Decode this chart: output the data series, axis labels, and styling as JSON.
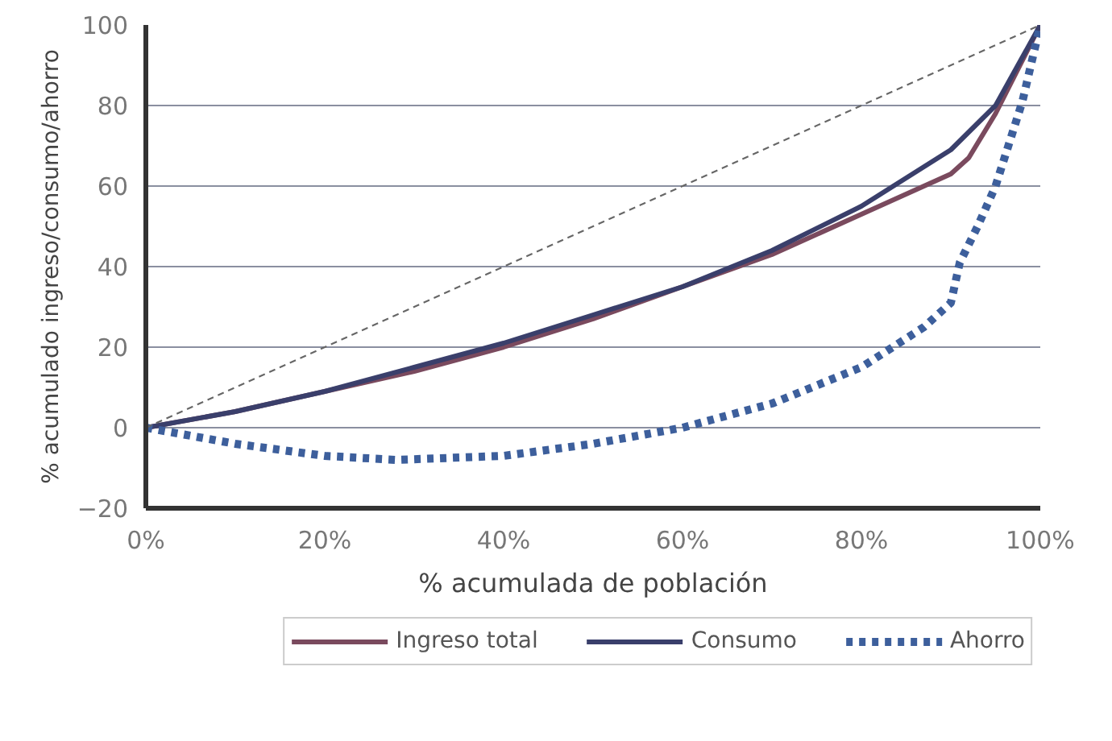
{
  "chart_data": {
    "type": "line",
    "xlabel": "% acumulada de población",
    "ylabel": "% acumulado ingreso/consumo/ahorro",
    "xlim": [
      0,
      100
    ],
    "ylim": [
      -20,
      100
    ],
    "xticks": [
      {
        "value": 0,
        "label": "0%"
      },
      {
        "value": 20,
        "label": "20%"
      },
      {
        "value": 40,
        "label": "40%"
      },
      {
        "value": 60,
        "label": "60%"
      },
      {
        "value": 80,
        "label": "80%"
      },
      {
        "value": 100,
        "label": "100%"
      }
    ],
    "yticks": [
      -20,
      0,
      20,
      40,
      60,
      80,
      100
    ],
    "grid": "y",
    "legend": "bottom",
    "series": [
      {
        "name": "Ingreso total",
        "color": "#7a4a5e",
        "line_style": "solid",
        "x": [
          0,
          10,
          20,
          30,
          40,
          50,
          60,
          70,
          80,
          90,
          92,
          95,
          100
        ],
        "values": [
          0,
          4,
          9,
          14,
          20,
          27,
          35,
          43,
          53,
          63,
          67,
          78,
          100
        ]
      },
      {
        "name": "Consumo",
        "color": "#3a3f6b",
        "line_style": "solid",
        "x": [
          0,
          10,
          20,
          30,
          40,
          50,
          60,
          70,
          80,
          90,
          95,
          100
        ],
        "values": [
          0,
          4,
          9,
          15,
          21,
          28,
          35,
          44,
          55,
          69,
          80,
          100
        ]
      },
      {
        "name": "Ahorro",
        "color": "#3d5f9c",
        "line_style": "dotted",
        "x": [
          0,
          10,
          20,
          28,
          40,
          50,
          60,
          70,
          80,
          87,
          90,
          91,
          93,
          95,
          98,
          100
        ],
        "values": [
          0,
          -4,
          -7,
          -8,
          -7,
          -4,
          0,
          6,
          15,
          25,
          31,
          41,
          50,
          60,
          81,
          100
        ]
      },
      {
        "color": "#666666",
        "line_style": "dashed",
        "x": [
          0,
          100
        ],
        "values": [
          0,
          100
        ]
      }
    ]
  }
}
